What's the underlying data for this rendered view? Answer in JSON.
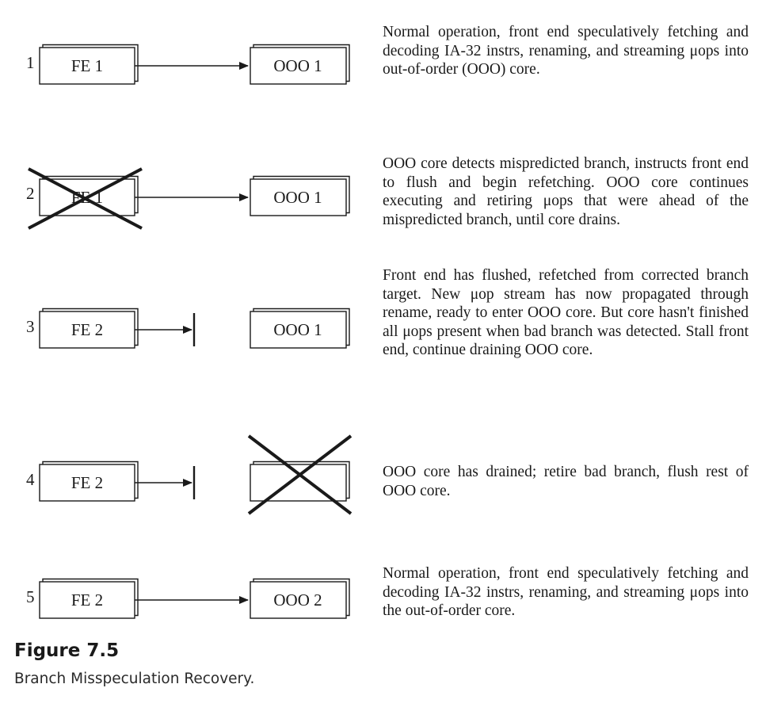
{
  "steps": [
    {
      "number": "1",
      "front_end": "FE 1",
      "core": "OOO 1",
      "description": "Normal operation, front end speculatively fetching and decoding IA-32 instrs, renaming, and streaming μops into out-of-order (OOO) core."
    },
    {
      "number": "2",
      "front_end": "FE 1",
      "core": "OOO 1",
      "description": "OOO core detects mispredicted branch, instructs front end to flush and begin refetching. OOO core continues executing and retiring μops that were ahead of the mispredicted branch, until core drains."
    },
    {
      "number": "3",
      "front_end": "FE 2",
      "core": "OOO 1",
      "description": "Front end has flushed, refetched from corrected branch target. New μop stream has now propagated through rename, ready to enter OOO core. But core hasn't finished all μops present when bad branch was detected. Stall front end, continue draining OOO core."
    },
    {
      "number": "4",
      "front_end": "FE 2",
      "core": "",
      "description": "OOO core has drained; retire bad branch, flush rest of OOO core."
    },
    {
      "number": "5",
      "front_end": "FE 2",
      "core": "OOO 2",
      "description": "Normal operation, front end speculatively fetching and decoding IA-32 instrs, renaming, and streaming μops into the out-of-order core."
    }
  ],
  "figure": {
    "title": "Figure 7.5",
    "caption": "Branch Misspeculation Recovery."
  }
}
